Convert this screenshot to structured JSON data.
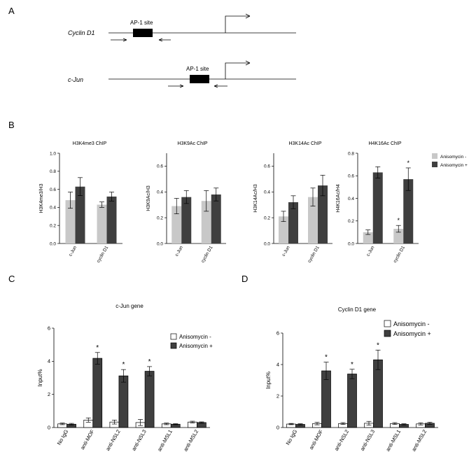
{
  "panels": {
    "a": "A",
    "b": "B",
    "c": "C",
    "d": "D"
  },
  "diagram": {
    "genes": [
      {
        "name": "Cyclin D1",
        "site_label": "AP-1 site"
      },
      {
        "name": "c-Jun",
        "site_label": "AP-1 site"
      }
    ]
  },
  "colors": {
    "minus": "#c8c8c8",
    "plus": "#3f3f3f",
    "open_bar": "#ffffff",
    "axis": "#000000"
  },
  "chart_data": [
    {
      "type": "bar",
      "title": "H3K4me3 ChIP",
      "ylabel": "H3K4me3/H3",
      "categories": [
        "c-Jun",
        "cyclin D1"
      ],
      "ylim": [
        0,
        1.0
      ],
      "yticks": [
        0.0,
        0.2,
        0.4,
        0.6,
        0.8,
        1.0
      ],
      "ytick_labels": [
        "0.0",
        "0.2",
        "0.4",
        "0.6",
        "0.8",
        "1.0"
      ],
      "series": [
        {
          "name": "Anisomycin -",
          "values": [
            0.48,
            0.43
          ],
          "errors": [
            0.09,
            0.03
          ]
        },
        {
          "name": "Anisomycin +",
          "values": [
            0.63,
            0.52
          ],
          "errors": [
            0.1,
            0.05
          ]
        }
      ],
      "significance": [
        [],
        []
      ]
    },
    {
      "type": "bar",
      "title": "H3K9Ac ChIP",
      "ylabel": "H3K9Ac/H3",
      "categories": [
        "c-Jun",
        "cyclin D1"
      ],
      "ylim": [
        0,
        0.7
      ],
      "yticks": [
        0.0,
        0.2,
        0.4,
        0.6
      ],
      "ytick_labels": [
        "0.0",
        "0.2",
        "0.4",
        "0.6"
      ],
      "series": [
        {
          "name": "Anisomycin -",
          "values": [
            0.29,
            0.33
          ],
          "errors": [
            0.06,
            0.08
          ]
        },
        {
          "name": "Anisomycin +",
          "values": [
            0.36,
            0.38
          ],
          "errors": [
            0.05,
            0.05
          ]
        }
      ],
      "significance": [
        [],
        []
      ]
    },
    {
      "type": "bar",
      "title": "H3K14Ac ChIP",
      "ylabel": "H3K14Ac/H3",
      "categories": [
        "c-Jun",
        "cyclin D1"
      ],
      "ylim": [
        0,
        0.7
      ],
      "yticks": [
        0.0,
        0.2,
        0.4,
        0.6
      ],
      "ytick_labels": [
        "0.0",
        "0.2",
        "0.4",
        "0.6"
      ],
      "series": [
        {
          "name": "Anisomycin -",
          "values": [
            0.21,
            0.36
          ],
          "errors": [
            0.04,
            0.07
          ]
        },
        {
          "name": "Anisomycin +",
          "values": [
            0.32,
            0.45
          ],
          "errors": [
            0.05,
            0.08
          ]
        }
      ],
      "significance": [
        [],
        []
      ]
    },
    {
      "type": "bar",
      "title": "H4K16Ac ChIP",
      "ylabel": "H4K16Ac/H4",
      "categories": [
        "c-Jun",
        "cyclin D1"
      ],
      "ylim": [
        0,
        0.8
      ],
      "yticks": [
        0.0,
        0.2,
        0.4,
        0.6,
        0.8
      ],
      "ytick_labels": [
        "0.0",
        "0.2",
        "0.4",
        "0.6",
        "0.8"
      ],
      "series": [
        {
          "name": "Anisomycin -",
          "values": [
            0.1,
            0.13
          ],
          "errors": [
            0.02,
            0.03
          ]
        },
        {
          "name": "Anisomycin +",
          "values": [
            0.63,
            0.57
          ],
          "errors": [
            0.05,
            0.1
          ]
        }
      ],
      "significance": [
        [
          "",
          "*"
        ],
        [
          "",
          "*"
        ]
      ],
      "legend": [
        "Anisomycin -",
        "Anisomycin +"
      ],
      "legend_position": "right"
    },
    {
      "type": "bar",
      "title": "c-Jun gene",
      "ylabel": "Input%",
      "categories": [
        "No IgG",
        "anti-MOF",
        "anti-NSL2",
        "anti-NSL3",
        "anti-MSL1",
        "anti-MSL2"
      ],
      "ylim": [
        0,
        6
      ],
      "yticks": [
        0,
        2,
        4,
        6
      ],
      "ytick_labels": [
        "0",
        "2",
        "4",
        "6"
      ],
      "series": [
        {
          "name": "Anisomycin -",
          "values": [
            0.22,
            0.45,
            0.33,
            0.3,
            0.22,
            0.33
          ],
          "errors": [
            0.05,
            0.13,
            0.12,
            0.18,
            0.05,
            0.05
          ]
        },
        {
          "name": "Anisomycin +",
          "values": [
            0.2,
            4.18,
            3.12,
            3.4,
            0.2,
            0.3
          ],
          "errors": [
            0.05,
            0.35,
            0.38,
            0.28,
            0.03,
            0.04
          ]
        }
      ],
      "significance": [
        [
          "",
          "",
          "",
          "",
          "",
          ""
        ],
        [
          "",
          "*",
          "*",
          "*",
          "",
          ""
        ]
      ],
      "legend": [
        "Anisomycin -",
        "Anisomycin +"
      ],
      "legend_position": "top-right"
    },
    {
      "type": "bar",
      "title": "Cyclin D1 gene",
      "ylabel": "Input%",
      "categories": [
        "No IgG",
        "anti-MOF",
        "anti-NSL2",
        "anti-NSL3",
        "anti-MSL1",
        "anti-MSL2"
      ],
      "ylim": [
        0,
        6
      ],
      "yticks": [
        0,
        2,
        4,
        6
      ],
      "ytick_labels": [
        "0",
        "2",
        "4",
        "6"
      ],
      "series": [
        {
          "name": "Anisomycin -",
          "values": [
            0.22,
            0.25,
            0.25,
            0.27,
            0.25,
            0.23
          ],
          "errors": [
            0.04,
            0.08,
            0.06,
            0.12,
            0.06,
            0.07
          ]
        },
        {
          "name": "Anisomycin +",
          "values": [
            0.2,
            3.6,
            3.4,
            4.3,
            0.2,
            0.27
          ],
          "errors": [
            0.04,
            0.55,
            0.3,
            0.62,
            0.04,
            0.07
          ]
        }
      ],
      "significance": [
        [
          "",
          "",
          "",
          "",
          "",
          ""
        ],
        [
          "",
          "*",
          "*",
          "*",
          "",
          ""
        ]
      ],
      "legend": [
        "Anisomycin -",
        "Anisomycin +"
      ],
      "legend_position": "top-right"
    }
  ]
}
